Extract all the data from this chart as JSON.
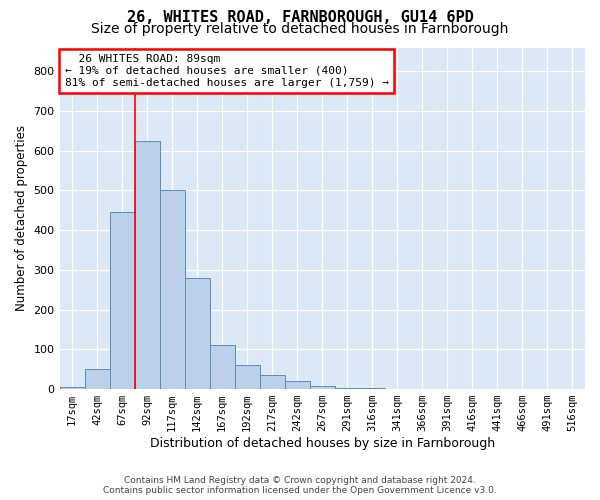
{
  "title": "26, WHITES ROAD, FARNBOROUGH, GU14 6PD",
  "subtitle": "Size of property relative to detached houses in Farnborough",
  "xlabel": "Distribution of detached houses by size in Farnborough",
  "ylabel": "Number of detached properties",
  "footer_line1": "Contains HM Land Registry data © Crown copyright and database right 2024.",
  "footer_line2": "Contains public sector information licensed under the Open Government Licence v3.0.",
  "bin_labels": [
    "17sqm",
    "42sqm",
    "67sqm",
    "92sqm",
    "117sqm",
    "142sqm",
    "167sqm",
    "192sqm",
    "217sqm",
    "242sqm",
    "267sqm",
    "291sqm",
    "316sqm",
    "341sqm",
    "366sqm",
    "391sqm",
    "416sqm",
    "441sqm",
    "466sqm",
    "491sqm",
    "516sqm"
  ],
  "bar_values": [
    5,
    50,
    445,
    625,
    500,
    280,
    110,
    60,
    35,
    20,
    8,
    3,
    2,
    0,
    0,
    0,
    0,
    0,
    1,
    0,
    0
  ],
  "bar_color": "#bdd0e9",
  "bar_edge_color": "#5b8db8",
  "property_line_bin": 2.5,
  "annotation_title": "26 WHITES ROAD: 89sqm",
  "annotation_line1": "← 19% of detached houses are smaller (400)",
  "annotation_line2": "81% of semi-detached houses are larger (1,759) →",
  "annotation_box_color": "white",
  "annotation_box_edge_color": "red",
  "vline_color": "red",
  "ylim": [
    0,
    860
  ],
  "yticks": [
    0,
    100,
    200,
    300,
    400,
    500,
    600,
    700,
    800
  ],
  "background_color": "#dce8f5",
  "grid_color": "white",
  "title_fontsize": 11,
  "subtitle_fontsize": 10,
  "ylabel_fontsize": 8.5,
  "xlabel_fontsize": 9,
  "tick_fontsize": 8,
  "annotation_fontsize": 8
}
